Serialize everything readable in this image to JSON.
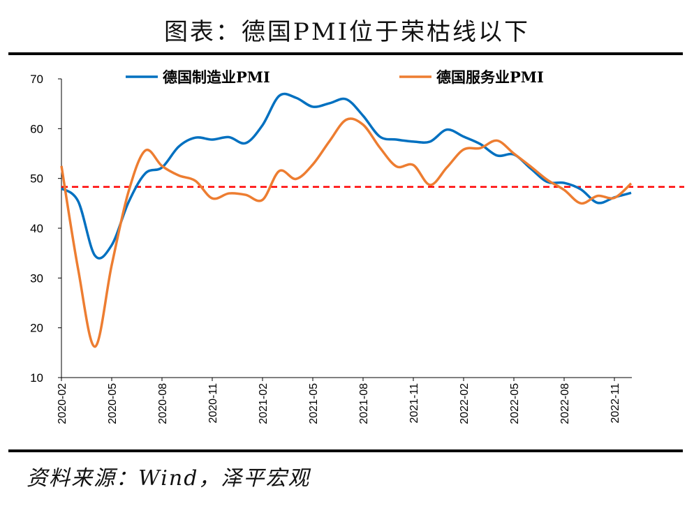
{
  "title": "图表：德国PMI位于荣枯线以下",
  "source": "资料来源：Wind，泽平宏观",
  "chart_data": {
    "type": "line",
    "title": "图表：德国PMI位于荣枯线以下",
    "xlabel": "",
    "ylabel": "",
    "ylim": [
      10,
      70
    ],
    "yticks": [
      10,
      20,
      30,
      40,
      50,
      60,
      70
    ],
    "x": [
      "2020-02",
      "2020-03",
      "2020-04",
      "2020-05",
      "2020-06",
      "2020-07",
      "2020-08",
      "2020-09",
      "2020-10",
      "2020-11",
      "2020-12",
      "2021-01",
      "2021-02",
      "2021-03",
      "2021-04",
      "2021-05",
      "2021-06",
      "2021-07",
      "2021-08",
      "2021-09",
      "2021-10",
      "2021-11",
      "2021-12",
      "2022-01",
      "2022-02",
      "2022-03",
      "2022-04",
      "2022-05",
      "2022-06",
      "2022-07",
      "2022-08",
      "2022-09",
      "2022-10",
      "2022-11",
      "2022-12"
    ],
    "xticks": [
      "2020-02",
      "2020-05",
      "2020-08",
      "2020-11",
      "2021-02",
      "2021-05",
      "2021-08",
      "2021-11",
      "2022-02",
      "2022-05",
      "2022-08",
      "2022-11"
    ],
    "legend_position": "top",
    "series": [
      {
        "name": "德国制造业PMI",
        "color": "#0070C0",
        "values": [
          48.0,
          45.4,
          34.5,
          36.6,
          45.2,
          51.0,
          52.2,
          56.4,
          58.2,
          57.8,
          58.3,
          57.1,
          60.7,
          66.6,
          66.2,
          64.4,
          65.1,
          65.9,
          62.6,
          58.4,
          57.8,
          57.4,
          57.4,
          59.8,
          58.4,
          56.9,
          54.6,
          54.8,
          52.0,
          49.3,
          49.1,
          47.8,
          45.1,
          46.2,
          47.1
        ]
      },
      {
        "name": "德国服务业PMI",
        "color": "#ED7D31",
        "values": [
          52.5,
          31.7,
          16.2,
          32.6,
          47.3,
          55.6,
          52.5,
          50.6,
          49.5,
          46.0,
          47.0,
          46.7,
          45.7,
          51.5,
          49.9,
          52.8,
          57.5,
          61.8,
          60.8,
          56.2,
          52.4,
          52.7,
          48.7,
          52.2,
          55.8,
          56.1,
          57.6,
          55.0,
          52.4,
          49.7,
          47.7,
          45.0,
          46.5,
          46.1,
          49.0
        ]
      }
    ],
    "reference_line": {
      "value": 48.3,
      "color": "#FF0000",
      "style": "dashed"
    }
  }
}
